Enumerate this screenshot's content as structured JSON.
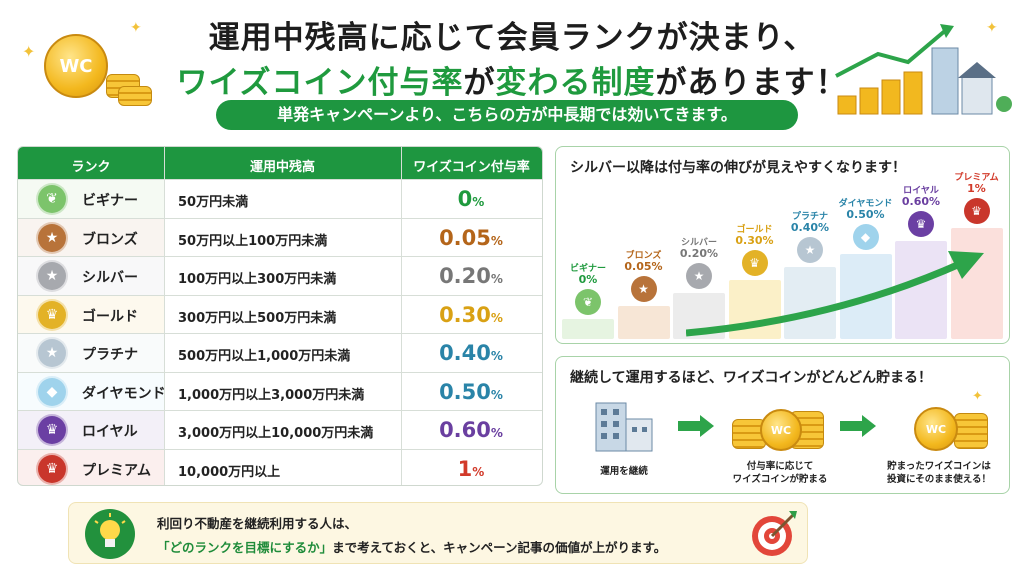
{
  "header": {
    "line1": "運用中残高に応じて会員ランクが決まり、",
    "line2_green": "ワイズコイン付与率",
    "line2_black1": "が",
    "line2_green2": "変わる制度",
    "line2_black2": "があります！",
    "sub": "単発キャンペーンより、こちらの方が中長期では効いてきます。",
    "coin_label": "WC"
  },
  "table": {
    "headers": [
      "ランク",
      "運用中残高",
      "ワイズコイン付与率"
    ],
    "rows": [
      {
        "rank": "ビギナー",
        "balance": "50万円未満",
        "rate": "0",
        "unit": "%",
        "color": "#1f9a3e",
        "medal": "#7cc46b",
        "glyph": "❦"
      },
      {
        "rank": "ブロンズ",
        "balance": "50万円以上100万円未満",
        "rate": "0.05",
        "unit": "%",
        "color": "#b4651a",
        "medal": "#b8733a",
        "glyph": "★"
      },
      {
        "rank": "シルバー",
        "balance": "100万円以上300万円未満",
        "rate": "0.20",
        "unit": "%",
        "color": "#777777",
        "medal": "#a7a9ae",
        "glyph": "★"
      },
      {
        "rank": "ゴールド",
        "balance": "300万円以上500万円未満",
        "rate": "0.30",
        "unit": "%",
        "color": "#d9a114",
        "medal": "#e3b227",
        "glyph": "♛"
      },
      {
        "rank": "プラチナ",
        "balance": "500万円以上1,000万円未満",
        "rate": "0.40",
        "unit": "%",
        "color": "#2a84a8",
        "medal": "#b7c6d2",
        "glyph": "★"
      },
      {
        "rank": "ダイヤモンド",
        "balance": "1,000万円以上3,000万円未満",
        "rate": "0.50",
        "unit": "%",
        "color": "#2a84a8",
        "medal": "#9fd3ec",
        "glyph": "◆"
      },
      {
        "rank": "ロイヤル",
        "balance": "3,000万円以上10,000万円未満",
        "rate": "0.60",
        "unit": "%",
        "color": "#6a3fa0",
        "medal": "#6b3fa3",
        "glyph": "♛"
      },
      {
        "rank": "プレミアム",
        "balance": "10,000万円以上",
        "rate": "1",
        "unit": "%",
        "color": "#d23a2a",
        "medal": "#c9362b",
        "glyph": "♛"
      }
    ]
  },
  "steps_panel": {
    "title": "シルバー以降は付与率の伸びが見えやすくなります！",
    "steps": [
      {
        "name": "ビギナー",
        "pct": "0%",
        "color": "#1f9a3e",
        "bg": "#e6f4e1"
      },
      {
        "name": "ブロンズ",
        "pct": "0.05%",
        "color": "#b4651a",
        "bg": "#f7e6d6"
      },
      {
        "name": "シルバー",
        "pct": "0.20%",
        "color": "#777777",
        "bg": "#ececec"
      },
      {
        "name": "ゴールド",
        "pct": "0.30%",
        "color": "#d9a114",
        "bg": "#fbf0c8"
      },
      {
        "name": "プラチナ",
        "pct": "0.40%",
        "color": "#2a84a8",
        "bg": "#e3edf3"
      },
      {
        "name": "ダイヤモンド",
        "pct": "0.50%",
        "color": "#2a84a8",
        "bg": "#dcecf7"
      },
      {
        "name": "ロイヤル",
        "pct": "0.60%",
        "color": "#6a3fa0",
        "bg": "#ebe3f5"
      },
      {
        "name": "プレミアム",
        "pct": "1%",
        "color": "#d23a2a",
        "bg": "#fbe0dc"
      }
    ]
  },
  "flow_panel": {
    "title": "継続して運用するほど、ワイズコインがどんどん貯まる！",
    "cap1": "運用を継続",
    "cap2a": "付与率に応じて",
    "cap2b": "ワイズコインが貯まる",
    "cap3a": "貯まったワイズコインは",
    "cap3b": "投資にそのまま使える！"
  },
  "tip": {
    "line1": "利回り不動産を継続利用する人は、",
    "line2_hl": "「どのランクを目標にするか」",
    "line2_rest": "まで考えておくと、キャンペーン記事の価値が上がります。"
  }
}
